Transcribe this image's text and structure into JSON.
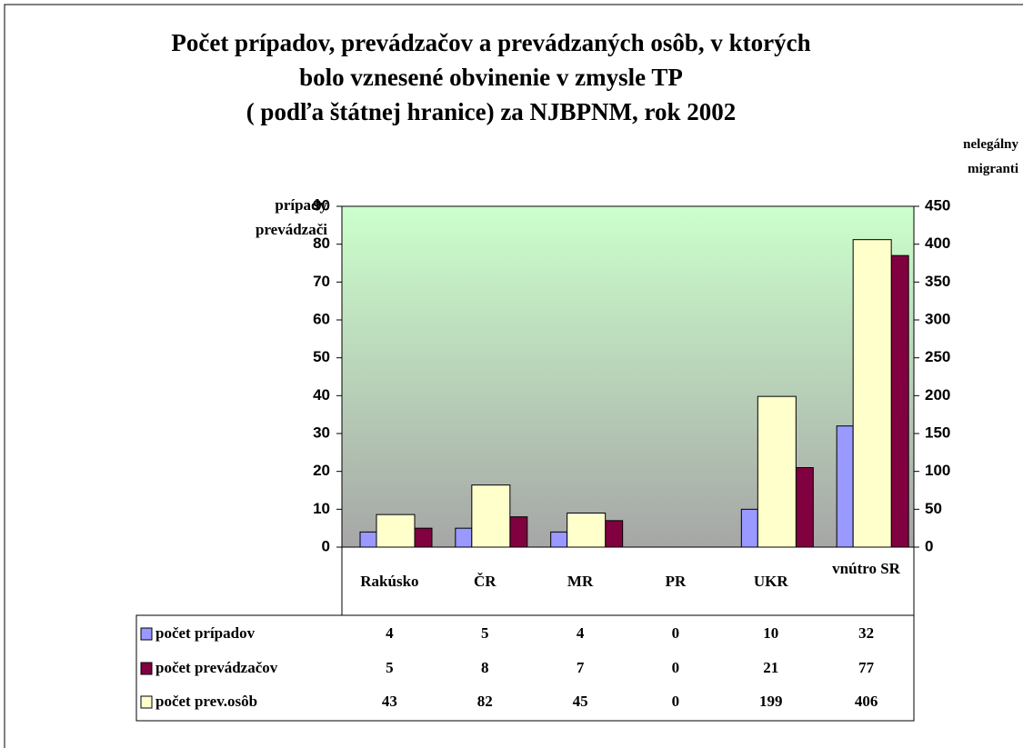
{
  "chart_data": {
    "type": "bar",
    "title": [
      "Počet prípadov, prevádzačov a prevádzaných osôb, v ktorých",
      "bolo vznesené obvinenie v zmysle TP",
      "( podľa štátnej hranice) za NJBPNM, rok 2002"
    ],
    "y_label": "prípady prevádzači",
    "y2_label": "nelegálny migranti",
    "categories": [
      "Rakúsko",
      "ČR",
      "MR",
      "PR",
      "UKR",
      "vnútro SR"
    ],
    "series": [
      {
        "name": "počet prípadov",
        "color": "#9999ff",
        "values": [
          4,
          5,
          4,
          0,
          10,
          32
        ]
      },
      {
        "name": "počet prevádzačov",
        "color": "#800040",
        "values": [
          5,
          8,
          7,
          0,
          21,
          77
        ]
      },
      {
        "name": "počet prev.osôb",
        "color": "#ffffcc",
        "values": [
          43,
          82,
          45,
          0,
          199,
          406
        ],
        "axis": "y2"
      }
    ],
    "ylim": [
      0,
      90
    ],
    "yticks": [
      0,
      10,
      20,
      30,
      40,
      50,
      60,
      70,
      80,
      90
    ],
    "y2lim": [
      0,
      450
    ],
    "y2ticks": [
      0,
      50,
      100,
      150,
      200,
      250,
      300,
      350,
      400,
      450
    ]
  }
}
